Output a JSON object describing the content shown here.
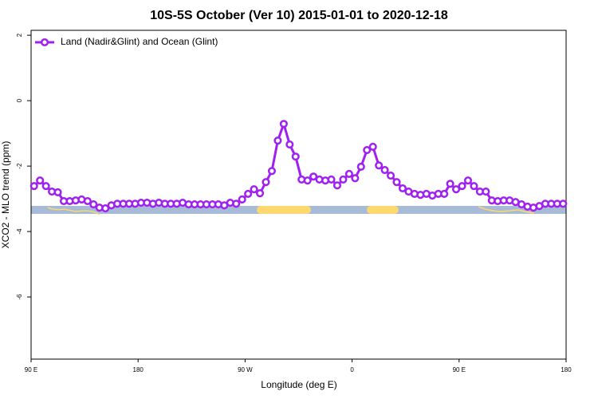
{
  "chart_data": {
    "type": "line",
    "title": "10S-5S October (Ver 10)   2015-01-01 to 2020-12-18",
    "x_label": "Longitude (deg E)",
    "y_label": "XCO2 - MLO trend (ppm)",
    "x": [
      92.5,
      97.5,
      102.5,
      107.5,
      112.5,
      117.5,
      122.5,
      127.5,
      132.5,
      137.5,
      142.5,
      147.5,
      152.5,
      157.5,
      162.5,
      167.5,
      172.5,
      177.5,
      182.5,
      187.5,
      192.5,
      197.5,
      202.5,
      207.5,
      212.5,
      217.5,
      222.5,
      227.5,
      232.5,
      237.5,
      242.5,
      247.5,
      252.5,
      257.5,
      262.5,
      267.5,
      272.5,
      277.5,
      282.5,
      287.5,
      292.5,
      297.5,
      302.5,
      307.5,
      312.5,
      317.5,
      322.5,
      327.5,
      332.5,
      337.5,
      342.5,
      347.5,
      352.5,
      357.5,
      362.5,
      367.5,
      372.5,
      377.5,
      382.5,
      387.5,
      392.5,
      397.5,
      402.5,
      407.5,
      412.5,
      417.5,
      422.5,
      427.5,
      432.5,
      437.5,
      442.5,
      447.5,
      452.5,
      457.5,
      462.5,
      467.5,
      472.5,
      477.5,
      482.5,
      487.5,
      492.5,
      497.5,
      502.5,
      507.5,
      512.5,
      517.5,
      522.5,
      527.5,
      532.5,
      537.5
    ],
    "series": [
      {
        "name": "Land (Nadir&Glint) and Ocean (Glint)",
        "color": "#a020f0",
        "values": [
          -2.61,
          -2.44,
          -2.61,
          -2.78,
          -2.8,
          -3.07,
          -3.07,
          -3.05,
          -3.02,
          -3.07,
          -3.17,
          -3.27,
          -3.29,
          -3.2,
          -3.15,
          -3.15,
          -3.15,
          -3.15,
          -3.12,
          -3.12,
          -3.15,
          -3.12,
          -3.15,
          -3.15,
          -3.15,
          -3.12,
          -3.17,
          -3.17,
          -3.17,
          -3.17,
          -3.17,
          -3.17,
          -3.2,
          -3.12,
          -3.15,
          -3.02,
          -2.85,
          -2.71,
          -2.83,
          -2.49,
          -2.15,
          -1.22,
          -0.71,
          -1.34,
          -1.71,
          -2.41,
          -2.44,
          -2.32,
          -2.41,
          -2.44,
          -2.41,
          -2.59,
          -2.41,
          -2.24,
          -2.37,
          -2.02,
          -1.51,
          -1.41,
          -1.98,
          -2.12,
          -2.29,
          -2.49,
          -2.68,
          -2.78,
          -2.85,
          -2.88,
          -2.85,
          -2.9,
          -2.85,
          -2.85,
          -2.54,
          -2.71,
          -2.61,
          -2.44,
          -2.61,
          -2.78,
          -2.78,
          -3.05,
          -3.07,
          -3.05,
          -3.05,
          -3.1,
          -3.17,
          -3.24,
          -3.27,
          -3.22,
          -3.15,
          -3.15,
          -3.15,
          -3.15
        ]
      }
    ],
    "xlim": [
      90,
      540
    ],
    "ylim": [
      -7.9,
      2.15
    ],
    "xticks": [
      {
        "value": 90,
        "label": "90 E"
      },
      180,
      {
        "value": 270,
        "label": "90 W"
      },
      {
        "value": 360,
        "label": "0"
      },
      {
        "value": 450,
        "label": "90 E"
      },
      {
        "value": 540,
        "label": "180"
      }
    ],
    "yticks": [
      2,
      0,
      -2,
      -4,
      -6
    ],
    "legend": "top-left"
  }
}
